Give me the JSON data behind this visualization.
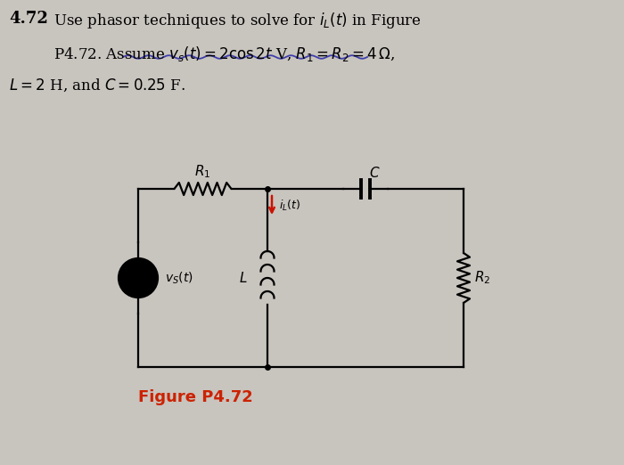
{
  "bg_color": "#c8c4be",
  "fig_label": "Figure P4.72",
  "fig_label_color": "#cc2200",
  "circuit": {
    "vs_label": "$v_S(t)$",
    "R1_label": "$R_1$",
    "R2_label": "$R_2$",
    "L_label": "$L$",
    "C_label": "$C$",
    "iL_label": "$i_L(t)$"
  },
  "vs_fill": "#e8a8a0",
  "underline_color": "#3030aa",
  "arrow_color": "#cc1100"
}
